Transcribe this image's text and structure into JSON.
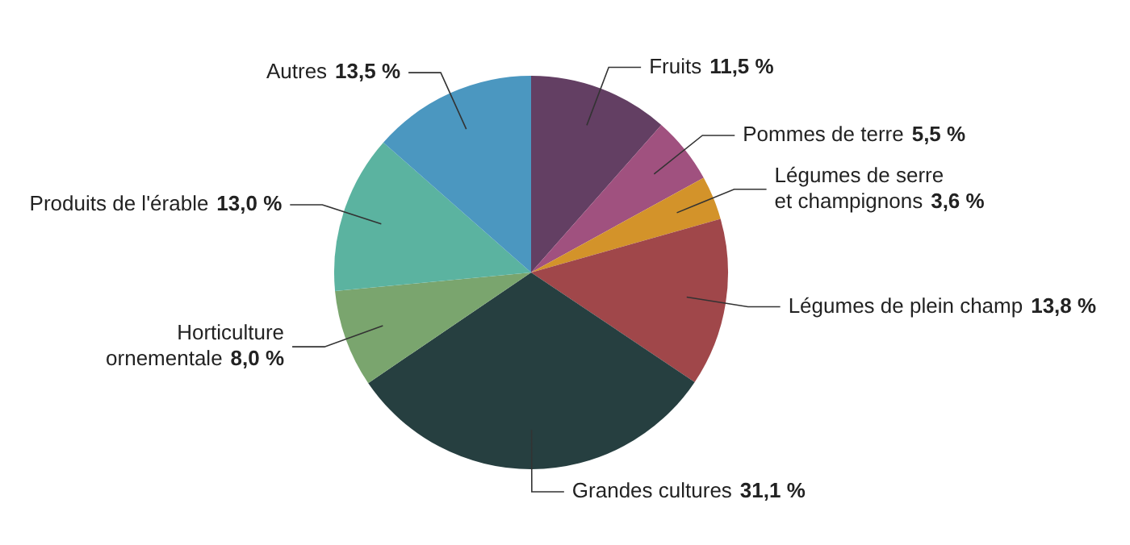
{
  "chart_data": {
    "type": "pie",
    "categories": [
      "Fruits",
      "Pommes de terre",
      "Légumes de serre\net champignons",
      "Légumes de plein champ",
      "Grandes cultures",
      "Horticulture\nornementale",
      "Produits de l'érable",
      "Autres"
    ],
    "values": [
      11.5,
      5.5,
      3.6,
      13.8,
      31.1,
      8.0,
      13.0,
      13.5
    ],
    "value_labels": [
      "11,5 %",
      "5,5 %",
      "3,6 %",
      "13,8 %",
      "31,1 %",
      "8,0 %",
      "13,0 %",
      "13,5 %"
    ],
    "colors": [
      "#633f63",
      "#a0517f",
      "#d3932a",
      "#a0474a",
      "#263f40",
      "#7aa56e",
      "#5bb3a0",
      "#4b97c0"
    ],
    "legend": false
  }
}
